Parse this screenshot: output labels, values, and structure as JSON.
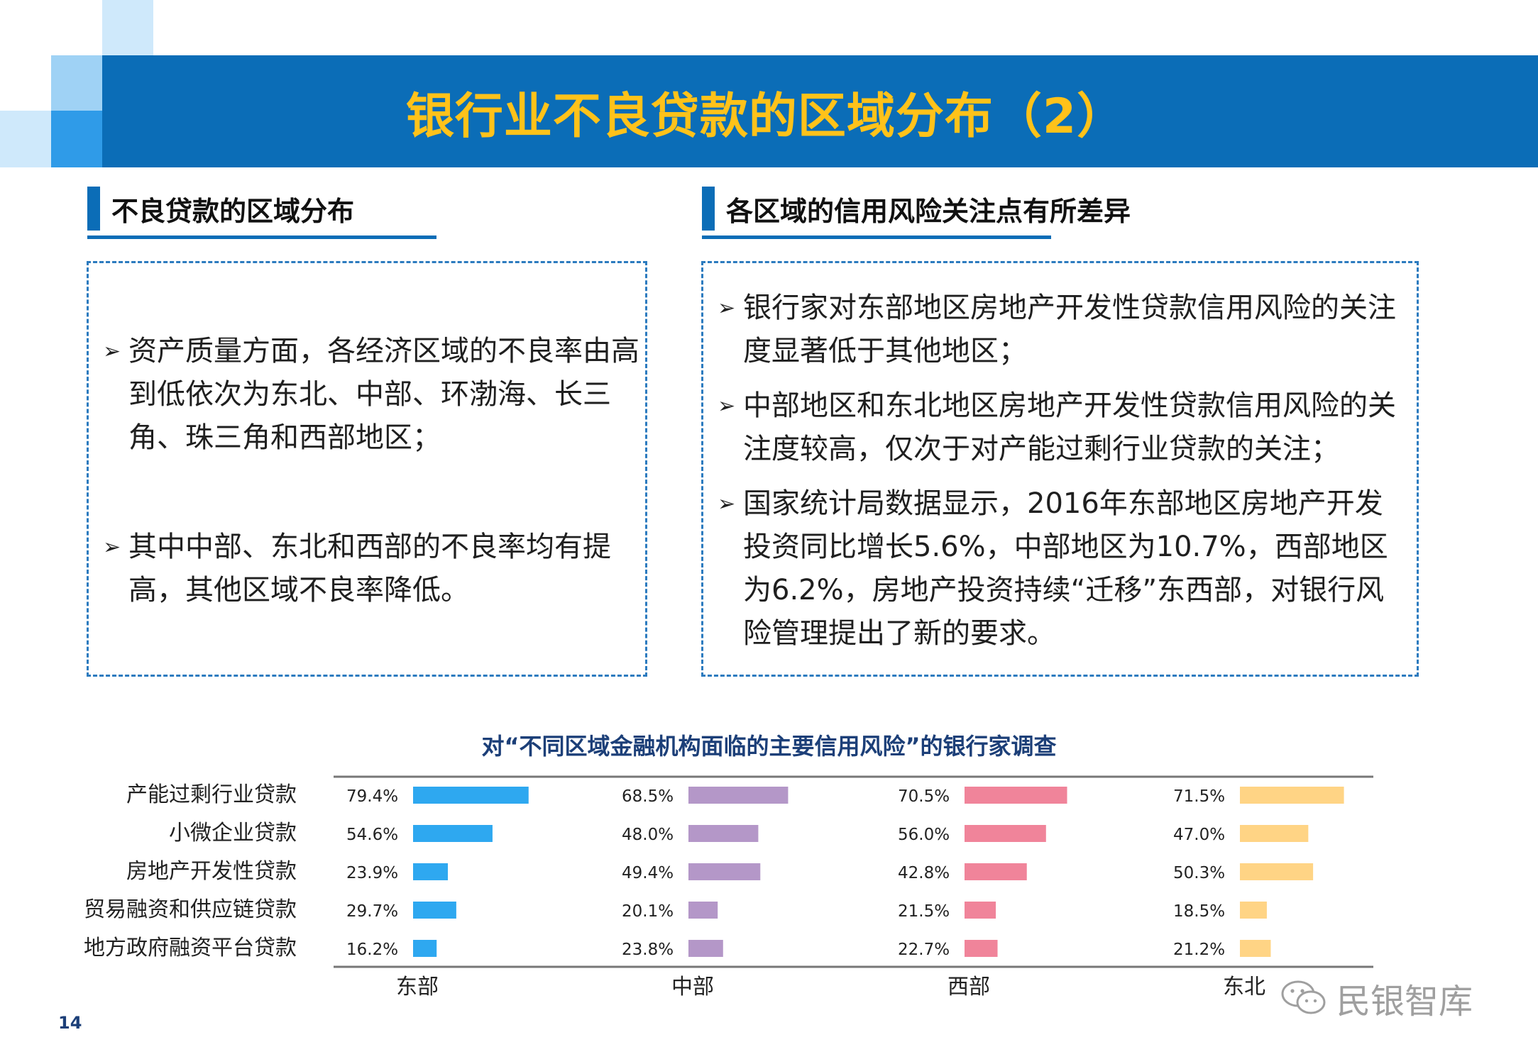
{
  "title": "银行业不良贷款的区域分布（2）",
  "left": {
    "heading": "不良贷款的区域分布",
    "bullets": [
      "资产质量方面，各经济区域的不良率由高到低依次为东北、中部、环渤海、长三角、珠三角和西部地区；",
      "其中中部、东北和西部的不良率均有提高，其他区域不良率降低。"
    ]
  },
  "right": {
    "heading": "各区域的信用风险关注点有所差异",
    "bullets": [
      "银行家对东部地区房地产开发性贷款信用风险的关注度显著低于其他地区；",
      "中部地区和东北地区房地产开发性贷款信用风险的关注度较高，仅次于对产能过剩行业贷款的关注；",
      "国家统计局数据显示，2016年东部地区房地产开发投资同比增长5.6%，中部地区为10.7%，西部地区为6.2%，房地产投资持续“迁移”东西部，对银行风险管理提出了新的要求。"
    ]
  },
  "chart_data": {
    "type": "bar",
    "orientation": "horizontal",
    "title": "对“不同区域金融机构面临的主要信用风险”的银行家调查",
    "categories": [
      "产能过剩行业贷款",
      "小微企业贷款",
      "房地产开发性贷款",
      "贸易融资和供应链贷款",
      "地方政府融资平台贷款"
    ],
    "series": [
      {
        "name": "东部",
        "color": "#2ea8f0",
        "values": [
          79.4,
          54.6,
          23.9,
          29.7,
          16.2
        ]
      },
      {
        "name": "中部",
        "color": "#b497c8",
        "values": [
          68.5,
          48.0,
          49.4,
          20.1,
          23.8
        ]
      },
      {
        "name": "西部",
        "color": "#f0849a",
        "values": [
          70.5,
          56.0,
          42.8,
          21.5,
          22.7
        ]
      },
      {
        "name": "东北",
        "color": "#ffd485",
        "values": [
          71.5,
          47.0,
          50.3,
          18.5,
          21.2
        ]
      }
    ],
    "value_format": "0.0%",
    "xlim": [
      0,
      100
    ]
  },
  "page_number": "14",
  "watermark": "民银智库"
}
